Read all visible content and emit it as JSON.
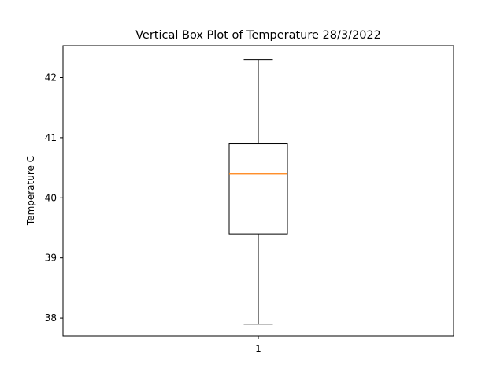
{
  "chart_data": {
    "type": "box",
    "title": "Vertical Box Plot of Temperature 28/3/2022",
    "xlabel": "",
    "ylabel": "Temperature C",
    "categories": [
      "1"
    ],
    "boxes": [
      {
        "category": "1",
        "whisker_low": 37.9,
        "q1": 39.4,
        "median": 40.4,
        "q3": 40.9,
        "whisker_high": 42.3
      }
    ],
    "ylim": [
      37.7,
      42.53
    ],
    "yticks": [
      38,
      39,
      40,
      41,
      42
    ],
    "grid": false,
    "colors": {
      "box": "#000000",
      "median": "#ff7f0e",
      "axes": "#000000"
    }
  }
}
